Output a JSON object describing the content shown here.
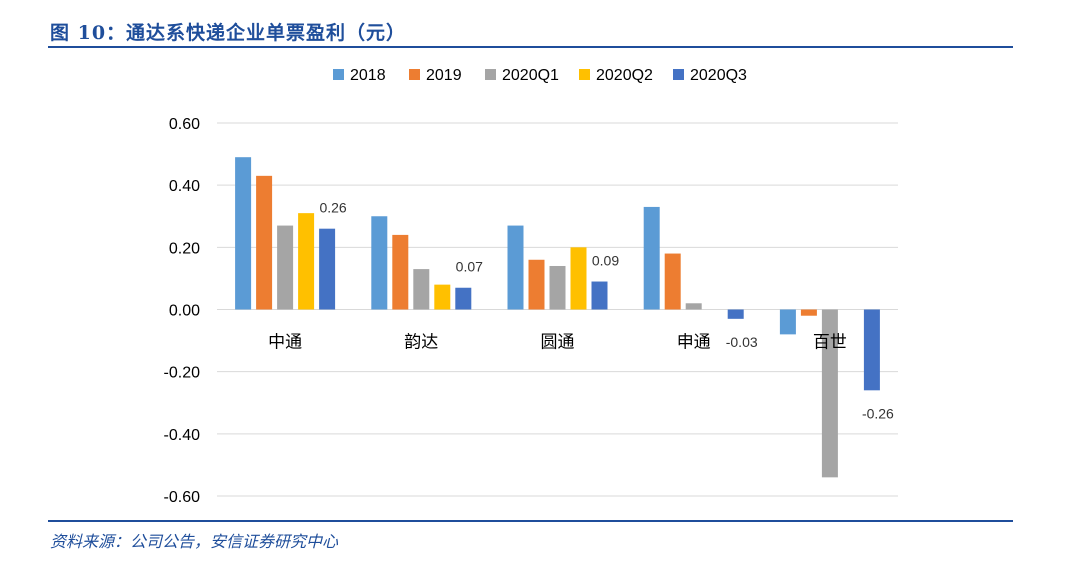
{
  "figure": {
    "title": "图 10：通达系快递企业单票盈利（元）",
    "source": "资料来源：公司公告，安信证券研究中心"
  },
  "chart_data": {
    "type": "bar",
    "categories": [
      "中通",
      "韵达",
      "圆通",
      "申通",
      "百世"
    ],
    "series": [
      {
        "name": "2018",
        "color": "#5b9bd5",
        "values": [
          0.49,
          0.3,
          0.27,
          0.33,
          -0.08
        ]
      },
      {
        "name": "2019",
        "color": "#ed7d31",
        "values": [
          0.43,
          0.24,
          0.16,
          0.18,
          -0.02
        ]
      },
      {
        "name": "2020Q1",
        "color": "#a5a5a5",
        "values": [
          0.27,
          0.13,
          0.14,
          0.02,
          -0.54
        ]
      },
      {
        "name": "2020Q2",
        "color": "#ffc000",
        "values": [
          0.31,
          0.08,
          0.2,
          null,
          null
        ]
      },
      {
        "name": "2020Q3",
        "color": "#4472c4",
        "values": [
          0.26,
          0.07,
          0.09,
          -0.03,
          -0.26
        ]
      }
    ],
    "data_labels": [
      {
        "series": "2020Q3",
        "category": "中通",
        "text": "0.26"
      },
      {
        "series": "2020Q3",
        "category": "韵达",
        "text": "0.07"
      },
      {
        "series": "2020Q3",
        "category": "圆通",
        "text": "0.09"
      },
      {
        "series": "2020Q3",
        "category": "申通",
        "text": "-0.03"
      },
      {
        "series": "2020Q3",
        "category": "百世",
        "text": "-0.26"
      }
    ],
    "y_ticks": [
      "0.60",
      "0.40",
      "0.20",
      "0.00",
      "-0.20",
      "-0.40",
      "-0.60"
    ],
    "ylim": [
      -0.6,
      0.6
    ],
    "grid": true,
    "legend_position": "top"
  }
}
